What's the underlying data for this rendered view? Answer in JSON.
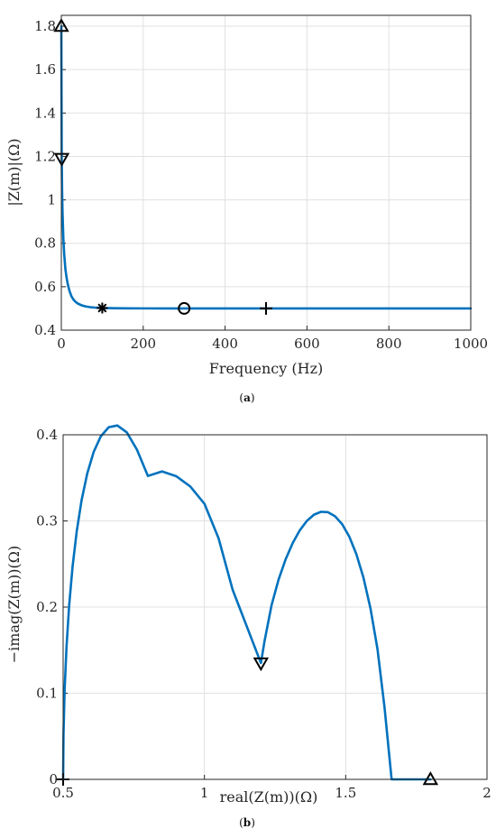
{
  "chart_data": [
    {
      "type": "line",
      "panel": "a",
      "caption": {
        "open": "(",
        "letter": "a",
        "close": ")"
      },
      "xlabel": "Frequency (Hz)",
      "ylabel": "|Z(m)|(Ω)",
      "xlim": [
        0,
        1000
      ],
      "ylim": [
        0.4,
        1.85
      ],
      "xticks": [
        0,
        200,
        400,
        600,
        800,
        1000
      ],
      "yticks": [
        0.4,
        0.6,
        0.8,
        1,
        1.2,
        1.4,
        1.6,
        1.8
      ],
      "grid": true,
      "line_color": "#0072bd",
      "series": [
        {
          "x": [
            0.01,
            1,
            2,
            3,
            5,
            7,
            10,
            13,
            16,
            20,
            25,
            30,
            35,
            40,
            50,
            60,
            70,
            80,
            100,
            130,
            160,
            200,
            250,
            300,
            400,
            500,
            600,
            700,
            800,
            900,
            1000
          ],
          "y": [
            1.8,
            1.19,
            1.03,
            0.94,
            0.82,
            0.75,
            0.68,
            0.64,
            0.61,
            0.58,
            0.555,
            0.54,
            0.53,
            0.523,
            0.514,
            0.509,
            0.506,
            0.504,
            0.502,
            0.501,
            0.5005,
            0.5002,
            0.5001,
            0.5,
            0.5,
            0.5,
            0.5,
            0.5,
            0.5,
            0.5,
            0.5
          ]
        }
      ],
      "markers": [
        {
          "symbol": "triangle-up",
          "x": 0,
          "y": 1.8
        },
        {
          "symbol": "triangle-down",
          "x": 1,
          "y": 1.19
        },
        {
          "symbol": "asterisk",
          "x": 100,
          "y": 0.502
        },
        {
          "symbol": "circle",
          "x": 300,
          "y": 0.5
        },
        {
          "symbol": "plus",
          "x": 500,
          "y": 0.5
        }
      ]
    },
    {
      "type": "line",
      "panel": "b",
      "caption": {
        "open": "(",
        "letter": "b",
        "close": ")"
      },
      "xlabel": "real(Z(m))(Ω)",
      "ylabel": "−imag(Z(m))(Ω)",
      "xlim": [
        0.5,
        2
      ],
      "ylim": [
        0,
        0.4
      ],
      "xticks": [
        0.5,
        1,
        1.5,
        2
      ],
      "yticks": [
        0,
        0.1,
        0.2,
        0.3,
        0.4
      ],
      "grid": true,
      "line_color": "#0072bd",
      "series": [
        {
          "x": [
            0.5,
            0.5013,
            0.5053,
            0.512,
            0.5213,
            0.5333,
            0.548,
            0.5653,
            0.5853,
            0.608,
            0.6333,
            0.6613,
            0.692,
            0.7253,
            0.7613,
            0.8,
            0.85,
            0.9,
            0.95,
            1.0,
            1.05,
            1.1,
            1.2,
            1.2125,
            1.2375,
            1.2625,
            1.2875,
            1.3125,
            1.3375,
            1.3625,
            1.3875,
            1.4125,
            1.4375,
            1.4625,
            1.4875,
            1.5125,
            1.5375,
            1.5625,
            1.5875,
            1.6125,
            1.6375,
            1.6625,
            1.6875,
            1.7125,
            1.7375,
            1.7625,
            1.7875,
            1.8
          ],
          "y": [
            0.0,
            0.0522,
            0.1037,
            0.1538,
            0.2017,
            0.2466,
            0.2876,
            0.324,
            0.355,
            0.38,
            0.3982,
            0.4088,
            0.4108,
            0.4028,
            0.3827,
            0.3522,
            0.3575,
            0.352,
            0.34,
            0.32,
            0.28,
            0.22,
            0.135,
            0.16,
            0.202,
            0.232,
            0.2555,
            0.2743,
            0.2891,
            0.3,
            0.3072,
            0.3106,
            0.3101,
            0.3054,
            0.2962,
            0.2819,
            0.2617,
            0.2346,
            0.1988,
            0.1513,
            0.0833,
            0.0,
            0.0,
            0.0,
            0.0,
            0.0,
            0.0,
            0.0
          ]
        }
      ],
      "markers": [
        {
          "symbol": "plus",
          "x": 0.5,
          "y": 0.0
        },
        {
          "symbol": "triangle-down",
          "x": 1.2,
          "y": 0.135
        },
        {
          "symbol": "triangle-up",
          "x": 1.8,
          "y": 0.0
        }
      ]
    }
  ]
}
